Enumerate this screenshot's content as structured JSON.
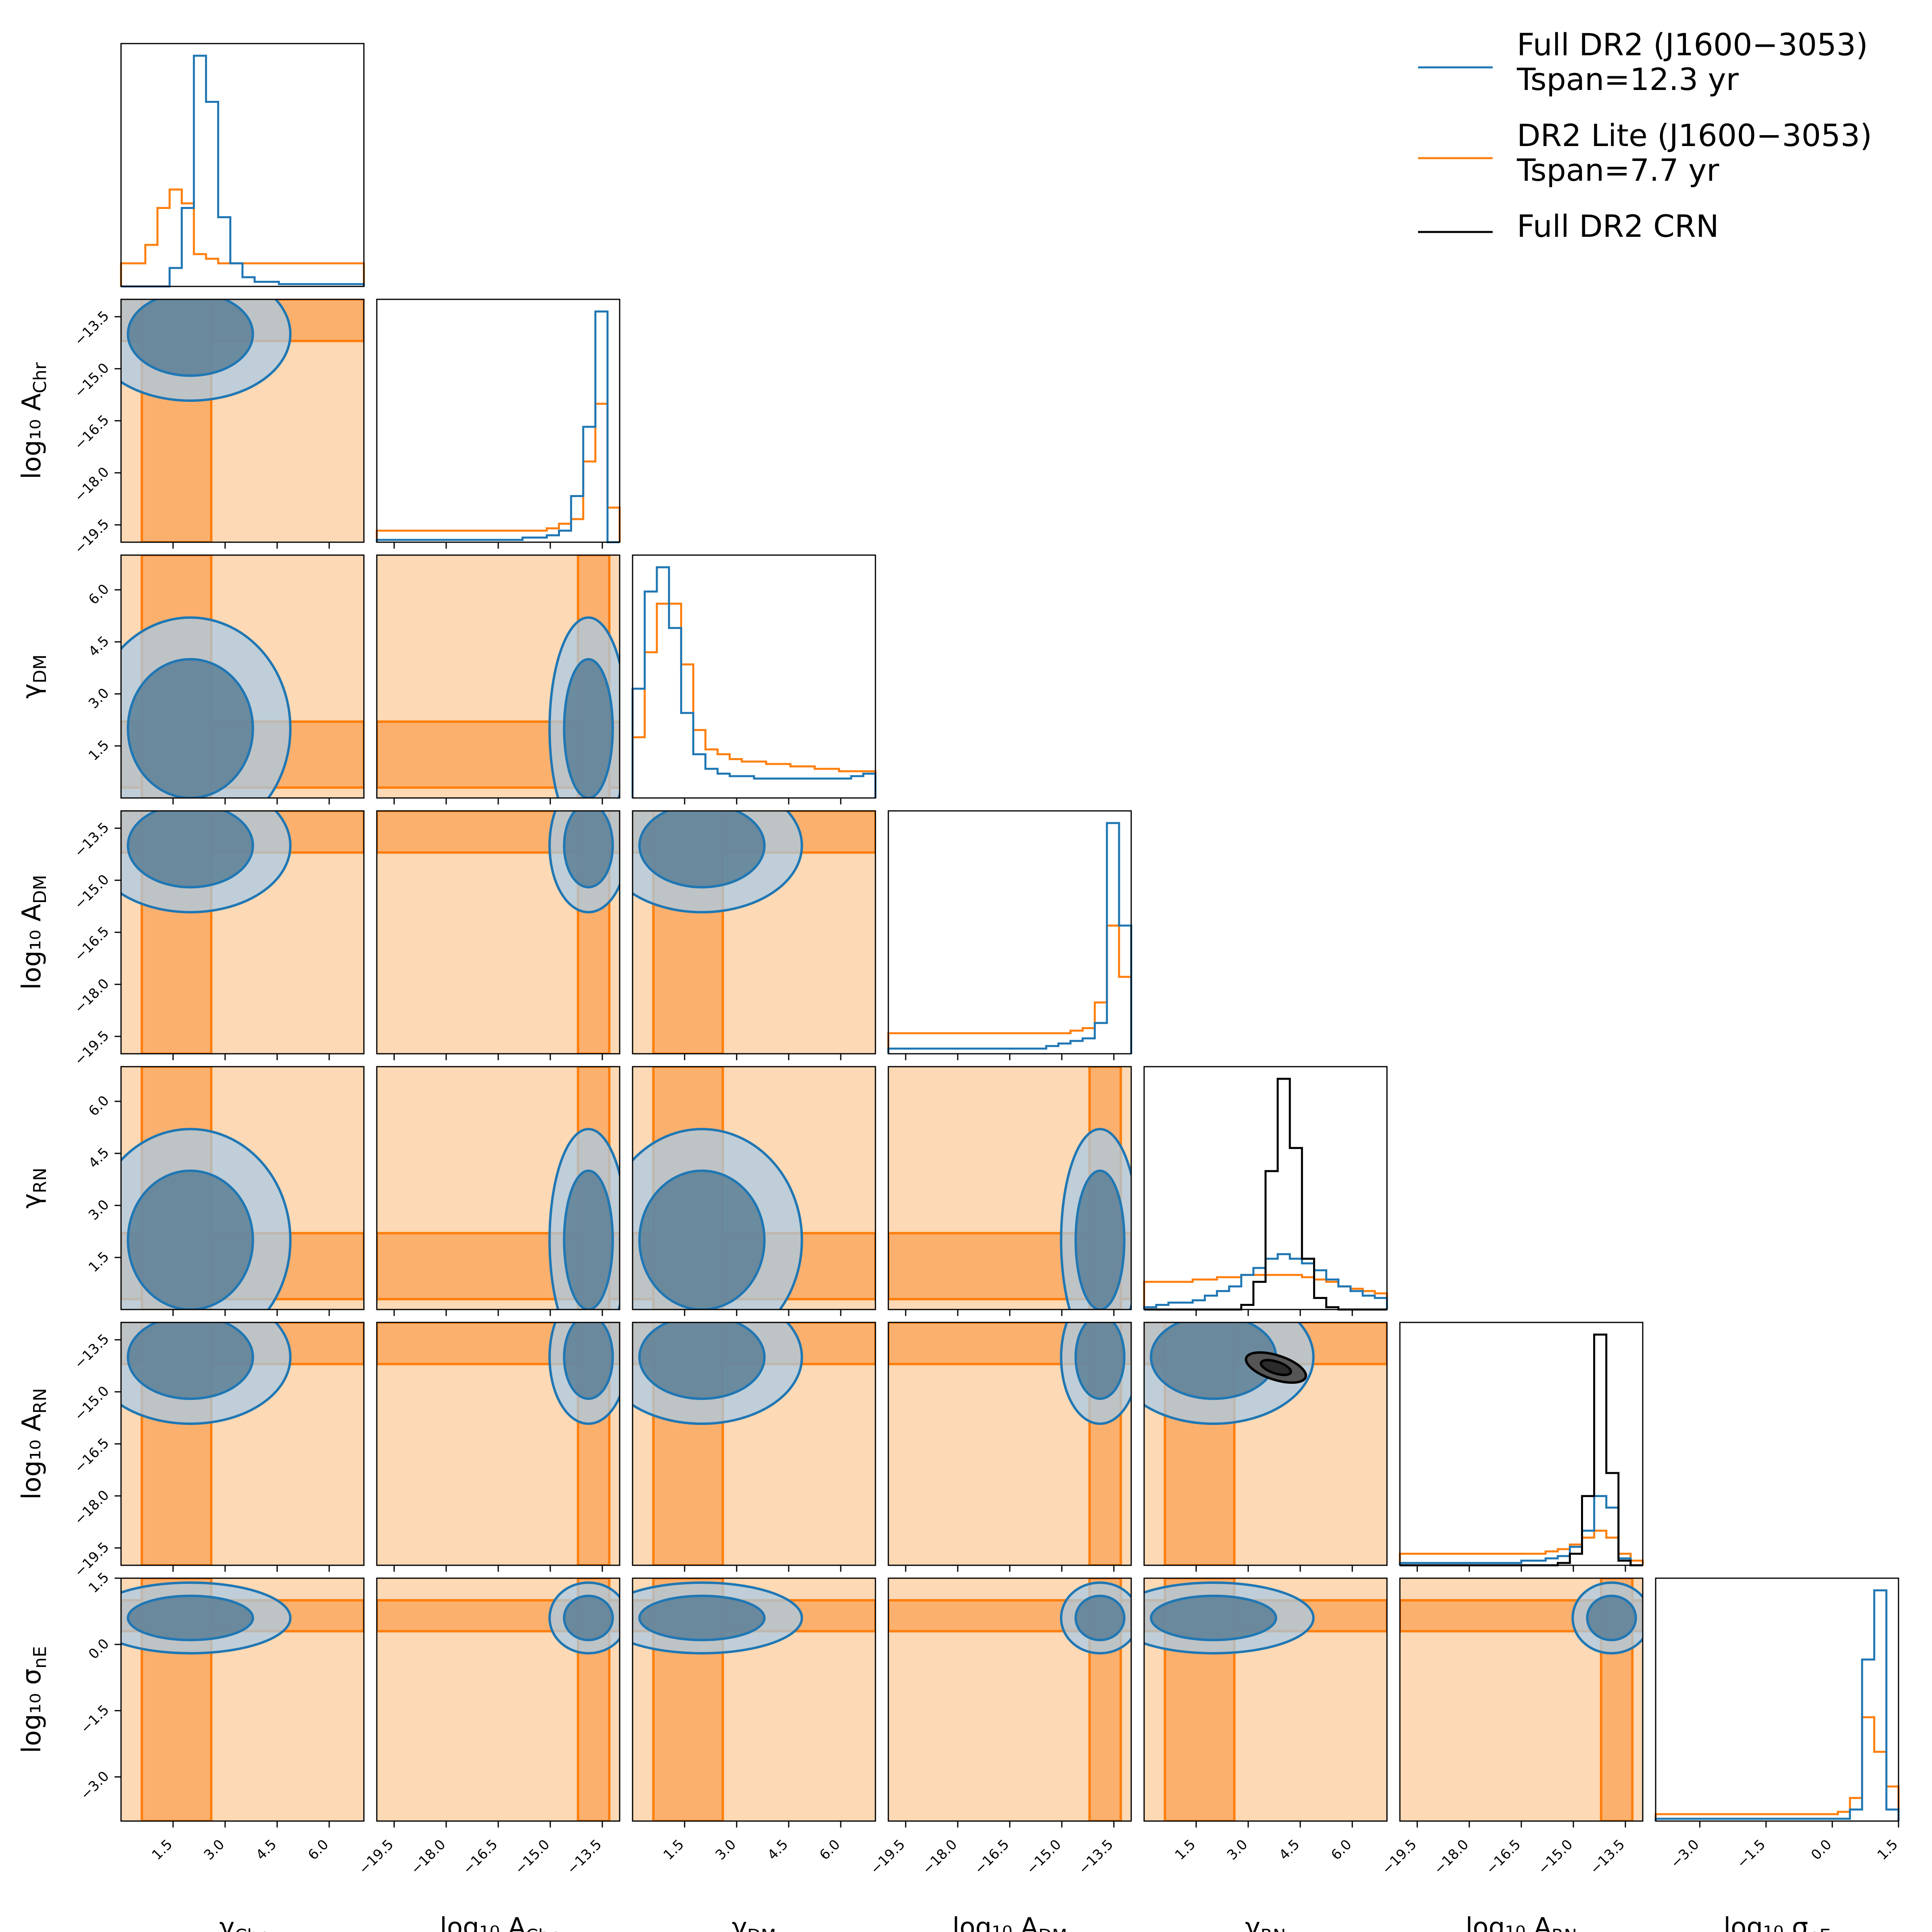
{
  "chart_data": {
    "type": "corner",
    "parameters": [
      {
        "name": "gamma_Chr",
        "label_main": "γ",
        "label_sub": "Chr",
        "range": [
          0,
          7
        ],
        "ticks": [
          1.5,
          3.0,
          4.5,
          6.0
        ],
        "tick_labels": [
          "1.5",
          "3.0",
          "4.5",
          "6.0"
        ]
      },
      {
        "name": "log10_A_Chr",
        "label_main": "log₁₀ A",
        "label_sub": "Chr",
        "range": [
          -20,
          -13
        ],
        "ticks": [
          -19.5,
          -18.0,
          -16.5,
          -15.0,
          -13.5
        ],
        "tick_labels": [
          "−19.5",
          "−18.0",
          "−16.5",
          "−15.0",
          "−13.5"
        ]
      },
      {
        "name": "gamma_DM",
        "label_main": "γ",
        "label_sub": "DM",
        "range": [
          0,
          7
        ],
        "ticks": [
          1.5,
          3.0,
          4.5,
          6.0
        ],
        "tick_labels": [
          "1.5",
          "3.0",
          "4.5",
          "6.0"
        ]
      },
      {
        "name": "log10_A_DM",
        "label_main": "log₁₀ A",
        "label_sub": "DM",
        "range": [
          -20,
          -13
        ],
        "ticks": [
          -19.5,
          -18.0,
          -16.5,
          -15.0,
          -13.5
        ],
        "tick_labels": [
          "−19.5",
          "−18.0",
          "−16.5",
          "−15.0",
          "−13.5"
        ]
      },
      {
        "name": "gamma_RN",
        "label_main": "γ",
        "label_sub": "RN",
        "range": [
          0,
          7
        ],
        "ticks": [
          1.5,
          3.0,
          4.5,
          6.0
        ],
        "tick_labels": [
          "1.5",
          "3.0",
          "4.5",
          "6.0"
        ]
      },
      {
        "name": "log10_A_RN",
        "label_main": "log₁₀ A",
        "label_sub": "RN",
        "range": [
          -20,
          -13
        ],
        "ticks": [
          -19.5,
          -18.0,
          -16.5,
          -15.0,
          -13.5
        ],
        "tick_labels": [
          "−19.5",
          "−18.0",
          "−16.5",
          "−15.0",
          "−13.5"
        ]
      },
      {
        "name": "log10_sigma_nE",
        "label_main": "log₁₀ σ",
        "label_sub": "nE",
        "range": [
          -4,
          1.5
        ],
        "ticks": [
          -3.0,
          -1.5,
          0.0,
          1.5
        ],
        "tick_labels": [
          "−3.0",
          "−1.5",
          "0.0",
          "1.5"
        ]
      }
    ],
    "series": [
      {
        "name": "Full DR2 (J1600−3053)\nTspan=12.3 yr",
        "color": "#1f77b4"
      },
      {
        "name": "DR2 Lite (J1600−3053)\nTspan=7.7 yr",
        "color": "#ff7f0e"
      },
      {
        "name": "Full DR2 CRN",
        "color": "#000000"
      }
    ],
    "legend": {
      "placement": "top-right",
      "entries": [
        {
          "line1": "Full DR2 (J1600−3053)",
          "line2": "Tspan=12.3 yr",
          "color": "#1f77b4"
        },
        {
          "line1": "DR2 Lite (J1600−3053)",
          "line2": "Tspan=7.7 yr",
          "color": "#ff7f0e"
        },
        {
          "line1": "Full DR2 CRN",
          "line2": "",
          "color": "#000000"
        }
      ]
    },
    "marginals": [
      {
        "param": "gamma_Chr",
        "bins": [
          0,
          7
        ],
        "blue": [
          0,
          0,
          0,
          0,
          0.08,
          0.34,
          1.0,
          0.8,
          0.3,
          0.1,
          0.04,
          0.02,
          0.02,
          0.01,
          0.01,
          0.01,
          0.01,
          0.01,
          0.01,
          0.01
        ],
        "orange": [
          0.1,
          0.1,
          0.18,
          0.34,
          0.42,
          0.36,
          0.14,
          0.12,
          0.1,
          0.1,
          0.1,
          0.1,
          0.1,
          0.1,
          0.1,
          0.1,
          0.1,
          0.1,
          0.1,
          0.1
        ]
      },
      {
        "param": "log10_A_Chr",
        "bins": [
          -20,
          -13
        ],
        "blue": [
          0.01,
          0.01,
          0.01,
          0.01,
          0.01,
          0.01,
          0.01,
          0.01,
          0.01,
          0.01,
          0.01,
          0.01,
          0.02,
          0.02,
          0.03,
          0.05,
          0.2,
          0.5,
          1.0,
          0.0
        ],
        "orange": [
          0.05,
          0.05,
          0.05,
          0.05,
          0.05,
          0.05,
          0.05,
          0.05,
          0.05,
          0.05,
          0.05,
          0.05,
          0.05,
          0.05,
          0.06,
          0.08,
          0.1,
          0.35,
          0.6,
          0.15
        ]
      },
      {
        "param": "gamma_DM",
        "bins": [
          0,
          7
        ],
        "blue": [
          0.45,
          0.85,
          0.95,
          0.7,
          0.35,
          0.18,
          0.12,
          0.1,
          0.09,
          0.09,
          0.08,
          0.08,
          0.08,
          0.08,
          0.08,
          0.08,
          0.08,
          0.08,
          0.09,
          0.1
        ],
        "orange": [
          0.25,
          0.6,
          0.8,
          0.8,
          0.55,
          0.28,
          0.2,
          0.18,
          0.16,
          0.15,
          0.15,
          0.14,
          0.14,
          0.13,
          0.13,
          0.12,
          0.12,
          0.11,
          0.11,
          0.11
        ]
      },
      {
        "param": "log10_A_DM",
        "bins": [
          -20,
          -13
        ],
        "blue": [
          0.02,
          0.02,
          0.02,
          0.02,
          0.02,
          0.02,
          0.02,
          0.02,
          0.02,
          0.02,
          0.02,
          0.02,
          0.02,
          0.03,
          0.04,
          0.05,
          0.06,
          0.12,
          0.9,
          0.5
        ],
        "orange": [
          0.08,
          0.08,
          0.08,
          0.08,
          0.08,
          0.08,
          0.08,
          0.08,
          0.08,
          0.08,
          0.08,
          0.08,
          0.08,
          0.08,
          0.08,
          0.09,
          0.1,
          0.2,
          0.5,
          0.3
        ]
      },
      {
        "param": "gamma_RN",
        "bins": [
          0,
          7
        ],
        "blue": [
          0.01,
          0.02,
          0.03,
          0.03,
          0.04,
          0.06,
          0.08,
          0.1,
          0.15,
          0.18,
          0.22,
          0.24,
          0.22,
          0.2,
          0.17,
          0.13,
          0.1,
          0.08,
          0.06,
          0.05
        ],
        "orange": [
          0.12,
          0.12,
          0.12,
          0.12,
          0.13,
          0.13,
          0.14,
          0.14,
          0.15,
          0.15,
          0.15,
          0.15,
          0.15,
          0.14,
          0.13,
          0.12,
          0.1,
          0.09,
          0.08,
          0.07
        ],
        "black": [
          0,
          0,
          0,
          0,
          0,
          0,
          0,
          0,
          0.02,
          0.12,
          0.6,
          1.0,
          0.7,
          0.22,
          0.05,
          0.01,
          0,
          0,
          0,
          0
        ]
      },
      {
        "param": "log10_A_RN",
        "bins": [
          -20,
          -13
        ],
        "blue": [
          0.01,
          0.01,
          0.01,
          0.01,
          0.01,
          0.01,
          0.01,
          0.01,
          0.01,
          0.01,
          0.02,
          0.02,
          0.03,
          0.04,
          0.08,
          0.15,
          0.3,
          0.25,
          0.03,
          0.0
        ],
        "orange": [
          0.05,
          0.05,
          0.05,
          0.05,
          0.05,
          0.05,
          0.05,
          0.05,
          0.05,
          0.05,
          0.05,
          0.05,
          0.06,
          0.07,
          0.09,
          0.12,
          0.15,
          0.12,
          0.05,
          0.02
        ],
        "black": [
          0,
          0,
          0,
          0,
          0,
          0,
          0,
          0,
          0,
          0,
          0,
          0,
          0,
          0.01,
          0.05,
          0.3,
          1.0,
          0.4,
          0.02,
          0
        ]
      },
      {
        "param": "log10_sigma_nE",
        "bins": [
          -4,
          1.5
        ],
        "blue": [
          0.01,
          0.01,
          0.01,
          0.01,
          0.01,
          0.01,
          0.01,
          0.01,
          0.01,
          0.01,
          0.01,
          0.01,
          0.01,
          0.01,
          0.01,
          0.01,
          0.05,
          0.7,
          1.0,
          0.05
        ],
        "orange": [
          0.03,
          0.03,
          0.03,
          0.03,
          0.03,
          0.03,
          0.03,
          0.03,
          0.03,
          0.03,
          0.03,
          0.03,
          0.03,
          0.03,
          0.03,
          0.04,
          0.1,
          0.45,
          0.3,
          0.15
        ]
      }
    ]
  }
}
